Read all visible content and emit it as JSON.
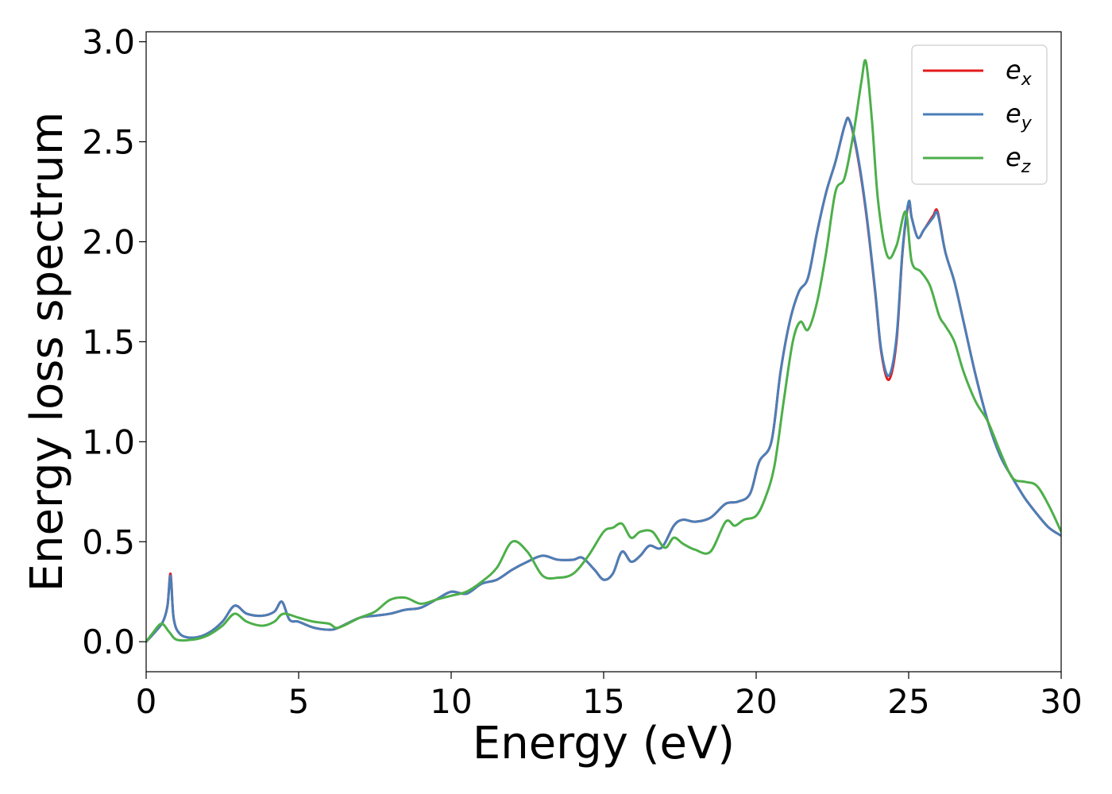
{
  "chart_data": {
    "type": "line",
    "title": "",
    "xlabel": "Energy (eV)",
    "ylabel": "Energy loss spectrum",
    "xlim": [
      0,
      30
    ],
    "ylim": [
      -0.15,
      3.05
    ],
    "xticks": [
      0,
      5,
      10,
      15,
      20,
      25,
      30
    ],
    "xtick_labels": [
      "0",
      "5",
      "10",
      "15",
      "20",
      "25",
      "30"
    ],
    "yticks": [
      0.0,
      0.5,
      1.0,
      1.5,
      2.0,
      2.5,
      3.0
    ],
    "ytick_labels": [
      "0.0",
      "0.5",
      "1.0",
      "1.5",
      "2.0",
      "2.5",
      "3.0"
    ],
    "grid": false,
    "legend_position": "top-right",
    "series": [
      {
        "name": "e",
        "subscript": "x",
        "color": "#e41a1c",
        "x": [
          0,
          0.3,
          0.55,
          0.7,
          0.8,
          0.9,
          1.1,
          1.5,
          2.0,
          2.5,
          2.9,
          3.3,
          3.8,
          4.2,
          4.45,
          4.7,
          5.0,
          5.5,
          6.0,
          6.3,
          7.0,
          7.5,
          8.0,
          8.5,
          9.0,
          9.5,
          10.0,
          10.5,
          11.0,
          11.5,
          12.0,
          12.5,
          13.0,
          13.5,
          14.0,
          14.3,
          14.7,
          15.0,
          15.3,
          15.6,
          15.9,
          16.2,
          16.5,
          16.9,
          17.3,
          17.6,
          18.0,
          18.5,
          19.0,
          19.4,
          19.8,
          20.1,
          20.5,
          20.8,
          21.1,
          21.4,
          21.7,
          22.0,
          22.3,
          22.6,
          22.9,
          23.05,
          23.3,
          23.6,
          23.9,
          24.1,
          24.35,
          24.6,
          24.8,
          25.0,
          25.1,
          25.3,
          25.5,
          25.8,
          25.95,
          26.2,
          26.5,
          26.8,
          27.2,
          27.6,
          28.0,
          28.4,
          28.8,
          29.2,
          29.6,
          30.0
        ],
        "values": [
          0.0,
          0.05,
          0.1,
          0.18,
          0.34,
          0.12,
          0.04,
          0.02,
          0.04,
          0.1,
          0.18,
          0.14,
          0.13,
          0.15,
          0.2,
          0.11,
          0.1,
          0.07,
          0.06,
          0.07,
          0.12,
          0.13,
          0.14,
          0.16,
          0.17,
          0.21,
          0.25,
          0.24,
          0.29,
          0.31,
          0.36,
          0.4,
          0.43,
          0.41,
          0.41,
          0.42,
          0.36,
          0.31,
          0.34,
          0.45,
          0.4,
          0.43,
          0.48,
          0.47,
          0.58,
          0.61,
          0.6,
          0.62,
          0.69,
          0.7,
          0.74,
          0.9,
          1.0,
          1.35,
          1.6,
          1.75,
          1.82,
          2.05,
          2.25,
          2.4,
          2.58,
          2.61,
          2.45,
          2.15,
          1.75,
          1.45,
          1.31,
          1.5,
          1.95,
          2.19,
          2.12,
          2.02,
          2.06,
          2.13,
          2.15,
          1.95,
          1.8,
          1.6,
          1.33,
          1.1,
          0.93,
          0.82,
          0.72,
          0.64,
          0.57,
          0.53
        ]
      },
      {
        "name": "e",
        "subscript": "y",
        "color": "#4a7fb8",
        "x": [
          0,
          0.3,
          0.55,
          0.7,
          0.8,
          0.9,
          1.1,
          1.5,
          2.0,
          2.5,
          2.9,
          3.3,
          3.8,
          4.2,
          4.45,
          4.7,
          5.0,
          5.5,
          6.0,
          6.3,
          7.0,
          7.5,
          8.0,
          8.5,
          9.0,
          9.5,
          10.0,
          10.5,
          11.0,
          11.5,
          12.0,
          12.5,
          13.0,
          13.5,
          14.0,
          14.3,
          14.7,
          15.0,
          15.3,
          15.6,
          15.9,
          16.2,
          16.5,
          16.9,
          17.3,
          17.6,
          18.0,
          18.5,
          19.0,
          19.4,
          19.8,
          20.1,
          20.5,
          20.8,
          21.1,
          21.4,
          21.7,
          22.0,
          22.3,
          22.6,
          22.9,
          23.05,
          23.3,
          23.6,
          23.9,
          24.1,
          24.35,
          24.6,
          24.8,
          25.0,
          25.1,
          25.3,
          25.5,
          25.8,
          25.95,
          26.2,
          26.5,
          26.8,
          27.2,
          27.6,
          28.0,
          28.4,
          28.8,
          29.2,
          29.6,
          30.0
        ],
        "values": [
          0.0,
          0.05,
          0.1,
          0.18,
          0.33,
          0.12,
          0.04,
          0.02,
          0.04,
          0.1,
          0.18,
          0.14,
          0.13,
          0.15,
          0.2,
          0.11,
          0.1,
          0.07,
          0.06,
          0.07,
          0.12,
          0.13,
          0.14,
          0.16,
          0.17,
          0.21,
          0.25,
          0.24,
          0.29,
          0.31,
          0.36,
          0.4,
          0.43,
          0.41,
          0.41,
          0.42,
          0.36,
          0.31,
          0.34,
          0.45,
          0.4,
          0.43,
          0.48,
          0.47,
          0.58,
          0.61,
          0.6,
          0.62,
          0.69,
          0.7,
          0.74,
          0.9,
          1.0,
          1.35,
          1.6,
          1.75,
          1.82,
          2.05,
          2.25,
          2.4,
          2.58,
          2.61,
          2.46,
          2.16,
          1.76,
          1.46,
          1.33,
          1.52,
          1.96,
          2.2,
          2.12,
          2.02,
          2.06,
          2.12,
          2.14,
          1.95,
          1.8,
          1.6,
          1.33,
          1.1,
          0.93,
          0.82,
          0.72,
          0.64,
          0.57,
          0.53
        ]
      },
      {
        "name": "e",
        "subscript": "z",
        "color": "#4daf4a",
        "x": [
          0,
          0.2,
          0.5,
          0.75,
          1.0,
          1.5,
          2.0,
          2.5,
          2.9,
          3.3,
          3.8,
          4.2,
          4.5,
          5.0,
          5.5,
          6.0,
          6.3,
          7.0,
          7.5,
          8.0,
          8.5,
          9.0,
          9.5,
          10.0,
          10.5,
          11.0,
          11.5,
          12.0,
          12.5,
          13.0,
          13.5,
          14.0,
          14.5,
          15.0,
          15.3,
          15.6,
          15.9,
          16.2,
          16.6,
          17.0,
          17.3,
          17.6,
          18.0,
          18.5,
          19.0,
          19.3,
          19.6,
          20.0,
          20.3,
          20.6,
          20.9,
          21.2,
          21.45,
          21.7,
          22.0,
          22.3,
          22.6,
          22.9,
          23.2,
          23.45,
          23.6,
          23.8,
          24.0,
          24.3,
          24.6,
          24.9,
          25.1,
          25.4,
          25.7,
          26.0,
          26.2,
          26.5,
          26.8,
          27.2,
          27.6,
          28.0,
          28.4,
          28.8,
          29.2,
          29.6,
          30.0
        ],
        "values": [
          0.0,
          0.04,
          0.09,
          0.05,
          0.01,
          0.01,
          0.03,
          0.08,
          0.14,
          0.1,
          0.08,
          0.1,
          0.14,
          0.12,
          0.1,
          0.09,
          0.07,
          0.12,
          0.15,
          0.21,
          0.22,
          0.19,
          0.21,
          0.23,
          0.25,
          0.3,
          0.37,
          0.5,
          0.45,
          0.33,
          0.32,
          0.34,
          0.43,
          0.55,
          0.57,
          0.59,
          0.52,
          0.55,
          0.55,
          0.47,
          0.52,
          0.49,
          0.46,
          0.45,
          0.6,
          0.58,
          0.61,
          0.63,
          0.72,
          0.88,
          1.2,
          1.5,
          1.6,
          1.56,
          1.7,
          1.95,
          2.25,
          2.32,
          2.55,
          2.8,
          2.9,
          2.6,
          2.2,
          1.93,
          1.98,
          2.15,
          1.9,
          1.85,
          1.78,
          1.63,
          1.58,
          1.5,
          1.35,
          1.2,
          1.1,
          0.95,
          0.82,
          0.8,
          0.78,
          0.68,
          0.55
        ]
      }
    ]
  }
}
